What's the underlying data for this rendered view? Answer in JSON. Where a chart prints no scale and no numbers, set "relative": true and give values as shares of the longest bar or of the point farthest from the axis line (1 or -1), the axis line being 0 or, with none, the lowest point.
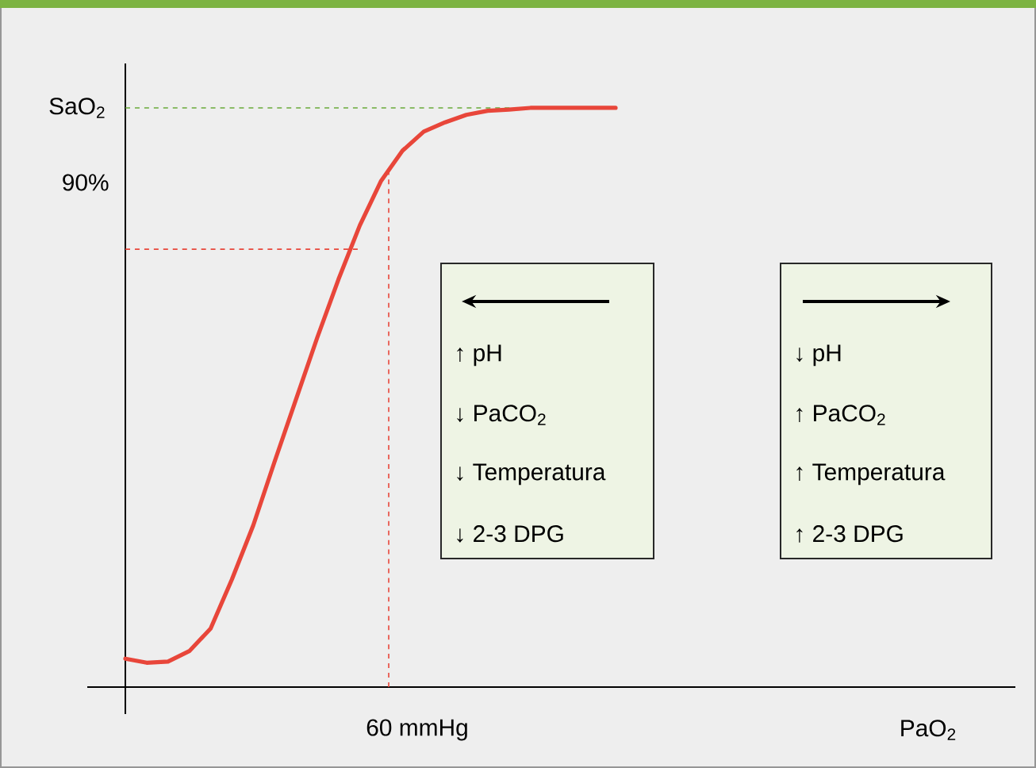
{
  "chart_data": {
    "type": "line",
    "relative": true,
    "ylabel": "SaO$_{2}$",
    "categories": [
      null,
      null,
      null,
      null,
      null,
      null,
      null,
      null,
      null,
      null,
      null,
      null,
      null,
      null,
      null,
      null,
      null,
      null,
      null,
      null,
      null,
      null,
      null,
      null
    ],
    "series": [
      {
        "color": "#e8463a",
        "values": [
          0.049,
          0.042,
          0.044,
          0.062,
          0.101,
          0.186,
          0.279,
          0.389,
          0.496,
          0.603,
          0.704,
          0.797,
          0.874,
          0.926,
          0.959,
          0.975,
          0.988,
          0.995,
          0.997,
          1,
          1,
          1,
          1,
          1
        ]
      }
    ],
    "ref_lines": [
      {
        "axis": "y",
        "value": 1,
        "color": "#6aaa3a",
        "line_style": "dashed"
      },
      {
        "axis": "y",
        "value": 0.756,
        "color": "#e8463a",
        "line_style": "dashed"
      }
    ],
    "annotations": [
      "↑ pH",
      "↓ PaCO$_{2}$",
      "↓ Temperatura",
      "↓ 2-3 DPG",
      "↓ pH",
      "↑ PaCO$_{2}$",
      "↑ Temperatura",
      "↑ 2-3 DPG",
      "90%",
      "60 mmHg",
      "PaO$_{2}$"
    ],
    "marker": "none",
    "line_style": "solid"
  }
}
